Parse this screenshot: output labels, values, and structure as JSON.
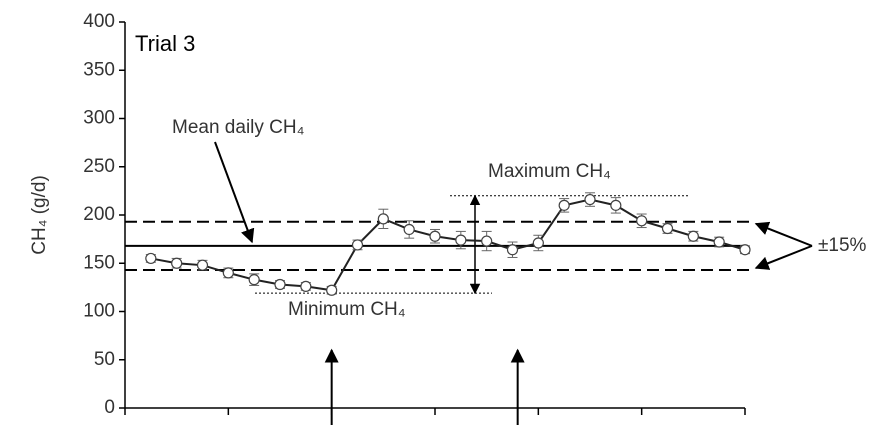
{
  "chart_data": {
    "type": "line",
    "title": "Trial 3",
    "y_label": "CH₄ (g/d)",
    "x": [
      1,
      2,
      3,
      4,
      5,
      6,
      7,
      8,
      9,
      10,
      11,
      12,
      13,
      14,
      15,
      16,
      17,
      18,
      19,
      20,
      21,
      22,
      23,
      24
    ],
    "series": [
      {
        "name": "CH₄",
        "color": "#222222",
        "values": [
          155,
          150,
          148,
          140,
          133,
          128,
          126,
          122,
          169,
          196,
          185,
          178,
          174,
          173,
          164,
          171,
          210,
          216,
          210,
          194,
          186,
          178,
          172,
          164
        ],
        "error": [
          4,
          5,
          5,
          5,
          6,
          4,
          4,
          4,
          5,
          10,
          9,
          7,
          9,
          10,
          8,
          8,
          7,
          7,
          8,
          7,
          5,
          5,
          5,
          4
        ]
      }
    ],
    "xlim": [
      0,
      24
    ],
    "xticks": [
      0,
      4,
      8,
      12,
      16,
      20,
      24
    ],
    "ylim": [
      0,
      400
    ],
    "yticks": [
      0,
      50,
      100,
      150,
      200,
      250,
      300,
      350,
      400
    ],
    "grid": false,
    "mean": 168,
    "upper": 193,
    "lower": 143,
    "maximum": 220,
    "minimum": 119,
    "event_x": [
      8,
      15.2
    ],
    "annotations": {
      "mean": "Mean daily CH₄",
      "maximum": "Maximum CH₄",
      "minimum": "Minimum CH₄",
      "band": "±15%"
    }
  }
}
